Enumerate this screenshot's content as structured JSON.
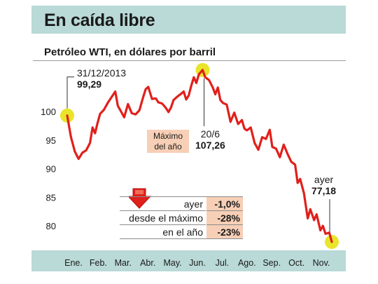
{
  "title": "En caída libre",
  "subtitle": "Petróleo WTI, en dólares por barril",
  "annotations": {
    "start_date": "31/12/2013",
    "start_value": "99,29",
    "max_label_line1": "Máximo",
    "max_label_line2": "del año",
    "max_date": "20/6",
    "max_value": "107,26",
    "end_date": "ayer",
    "end_value": "77,18"
  },
  "stats": [
    {
      "label": "ayer",
      "value": "-1,0%"
    },
    {
      "label": "desde el máximo",
      "value": "-28%"
    },
    {
      "label": "en el año",
      "value": "-23%"
    }
  ],
  "colors": {
    "line": "#e0201b",
    "highlight": "#e8e52a",
    "header_bg": "#b9dad7",
    "box_bg": "#f7cfb6",
    "arrow": "#e0201b"
  },
  "chart_data": {
    "type": "line",
    "title": "Petróleo WTI, en dólares por barril",
    "xlabel": "",
    "ylabel": "",
    "ylim": [
      77,
      110
    ],
    "yticks": [
      80,
      85,
      90,
      95,
      100
    ],
    "xticks": [
      "Ene.",
      "Feb.",
      "Mar.",
      "Abr.",
      "May.",
      "Jun.",
      "Jul.",
      "Ago.",
      "Sep.",
      "Oct.",
      "Nov."
    ],
    "grid": false,
    "series": [
      {
        "values": [
          [
            0.0,
            99.29
          ],
          [
            0.15,
            95.5
          ],
          [
            0.3,
            93.0
          ],
          [
            0.45,
            91.7
          ],
          [
            0.6,
            92.8
          ],
          [
            0.75,
            93.2
          ],
          [
            0.9,
            94.5
          ],
          [
            1.0,
            97.2
          ],
          [
            1.1,
            96.2
          ],
          [
            1.2,
            98.0
          ],
          [
            1.3,
            99.6
          ],
          [
            1.45,
            100.3
          ],
          [
            1.6,
            101.5
          ],
          [
            1.75,
            102.5
          ],
          [
            1.9,
            103.5
          ],
          [
            2.0,
            101.0
          ],
          [
            2.1,
            100.2
          ],
          [
            2.25,
            99.0
          ],
          [
            2.4,
            101.3
          ],
          [
            2.55,
            99.7
          ],
          [
            2.7,
            99.5
          ],
          [
            2.85,
            100.2
          ],
          [
            3.0,
            102.5
          ],
          [
            3.1,
            103.9
          ],
          [
            3.2,
            104.3
          ],
          [
            3.35,
            102.2
          ],
          [
            3.5,
            102.3
          ],
          [
            3.6,
            101.6
          ],
          [
            3.75,
            101.4
          ],
          [
            3.9,
            100.6
          ],
          [
            4.0,
            99.9
          ],
          [
            4.1,
            100.7
          ],
          [
            4.2,
            102.0
          ],
          [
            4.35,
            102.6
          ],
          [
            4.5,
            103.1
          ],
          [
            4.6,
            103.5
          ],
          [
            4.7,
            102.1
          ],
          [
            4.8,
            102.8
          ],
          [
            4.9,
            104.5
          ],
          [
            5.0,
            106.0
          ],
          [
            5.1,
            105.0
          ],
          [
            5.2,
            106.5
          ],
          [
            5.35,
            107.26
          ],
          [
            5.45,
            106.0
          ],
          [
            5.6,
            105.5
          ],
          [
            5.75,
            104.2
          ],
          [
            5.85,
            103.0
          ],
          [
            5.95,
            104.2
          ],
          [
            6.05,
            102.0
          ],
          [
            6.15,
            101.5
          ],
          [
            6.3,
            101.2
          ],
          [
            6.45,
            98.2
          ],
          [
            6.6,
            99.8
          ],
          [
            6.75,
            97.8
          ],
          [
            6.9,
            98.5
          ],
          [
            7.0,
            97.0
          ],
          [
            7.1,
            96.7
          ],
          [
            7.25,
            97.2
          ],
          [
            7.4,
            94.5
          ],
          [
            7.55,
            93.3
          ],
          [
            7.7,
            95.5
          ],
          [
            7.85,
            95.2
          ],
          [
            8.0,
            96.8
          ],
          [
            8.1,
            93.8
          ],
          [
            8.25,
            93.5
          ],
          [
            8.4,
            92.0
          ],
          [
            8.55,
            94.2
          ],
          [
            8.7,
            92.6
          ],
          [
            8.85,
            91.2
          ],
          [
            9.0,
            90.7
          ],
          [
            9.1,
            87.5
          ],
          [
            9.2,
            88.2
          ],
          [
            9.35,
            85.7
          ],
          [
            9.5,
            81.3
          ],
          [
            9.6,
            82.9
          ],
          [
            9.75,
            81.0
          ],
          [
            9.85,
            82.0
          ],
          [
            10.0,
            79.2
          ],
          [
            10.1,
            80.0
          ],
          [
            10.2,
            78.6
          ],
          [
            10.35,
            78.8
          ],
          [
            10.45,
            77.18
          ]
        ]
      }
    ],
    "highlight_points": [
      [
        0.0,
        99.29
      ],
      [
        5.35,
        107.26
      ],
      [
        10.45,
        77.18
      ]
    ]
  }
}
